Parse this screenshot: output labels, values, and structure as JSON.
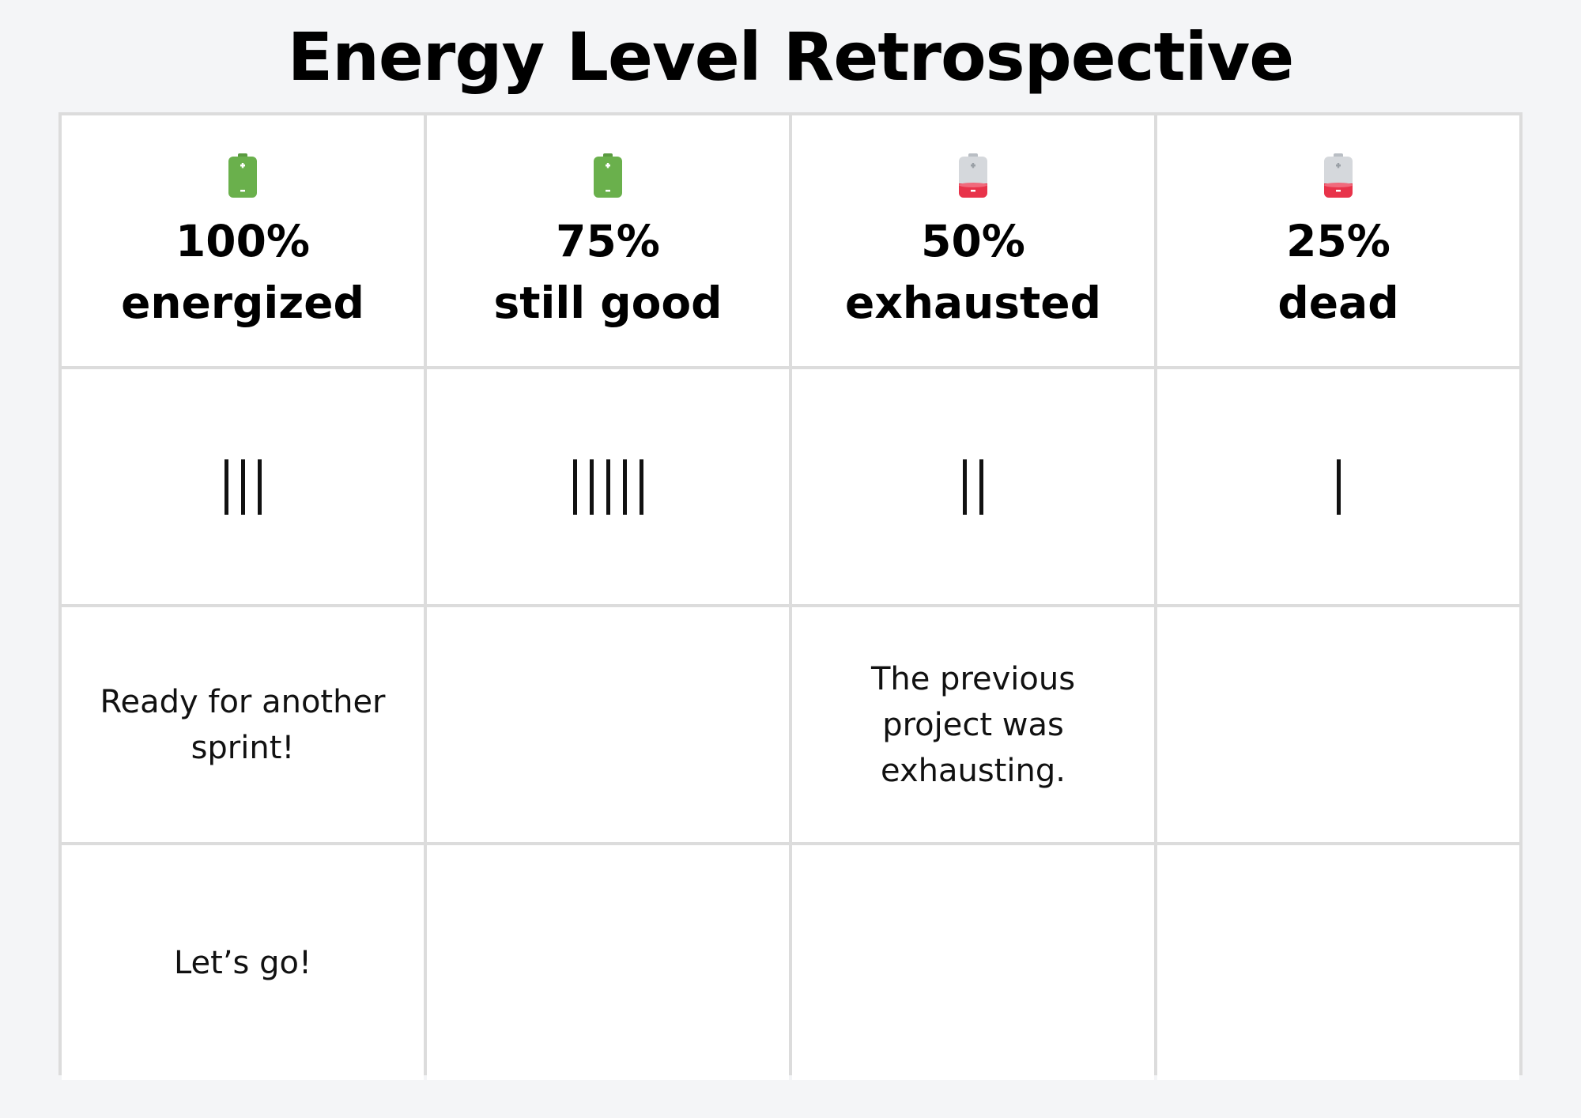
{
  "title": "Energy Level Retrospective",
  "colors": {
    "battery_green": "#6ab04c",
    "battery_red": "#e8334a",
    "battery_empty": "#d5d8dc",
    "grid_line": "#dcdcdc",
    "background": "#f4f5f7"
  },
  "columns": [
    {
      "percent": "100%",
      "label": "energized",
      "icon": "battery-full-icon",
      "battery": "full",
      "votes": 3
    },
    {
      "percent": "75%",
      "label": "still good",
      "icon": "battery-full-icon",
      "battery": "full",
      "votes": 5
    },
    {
      "percent": "50%",
      "label": "exhausted",
      "icon": "battery-low-icon",
      "battery": "low",
      "votes": 2
    },
    {
      "percent": "25%",
      "label": "dead",
      "icon": "battery-low-icon",
      "battery": "low",
      "votes": 1
    }
  ],
  "notes": [
    [
      "Ready for another sprint!",
      "",
      "The previous project was exhausting.",
      ""
    ],
    [
      "Let’s go!",
      "",
      "",
      ""
    ]
  ]
}
